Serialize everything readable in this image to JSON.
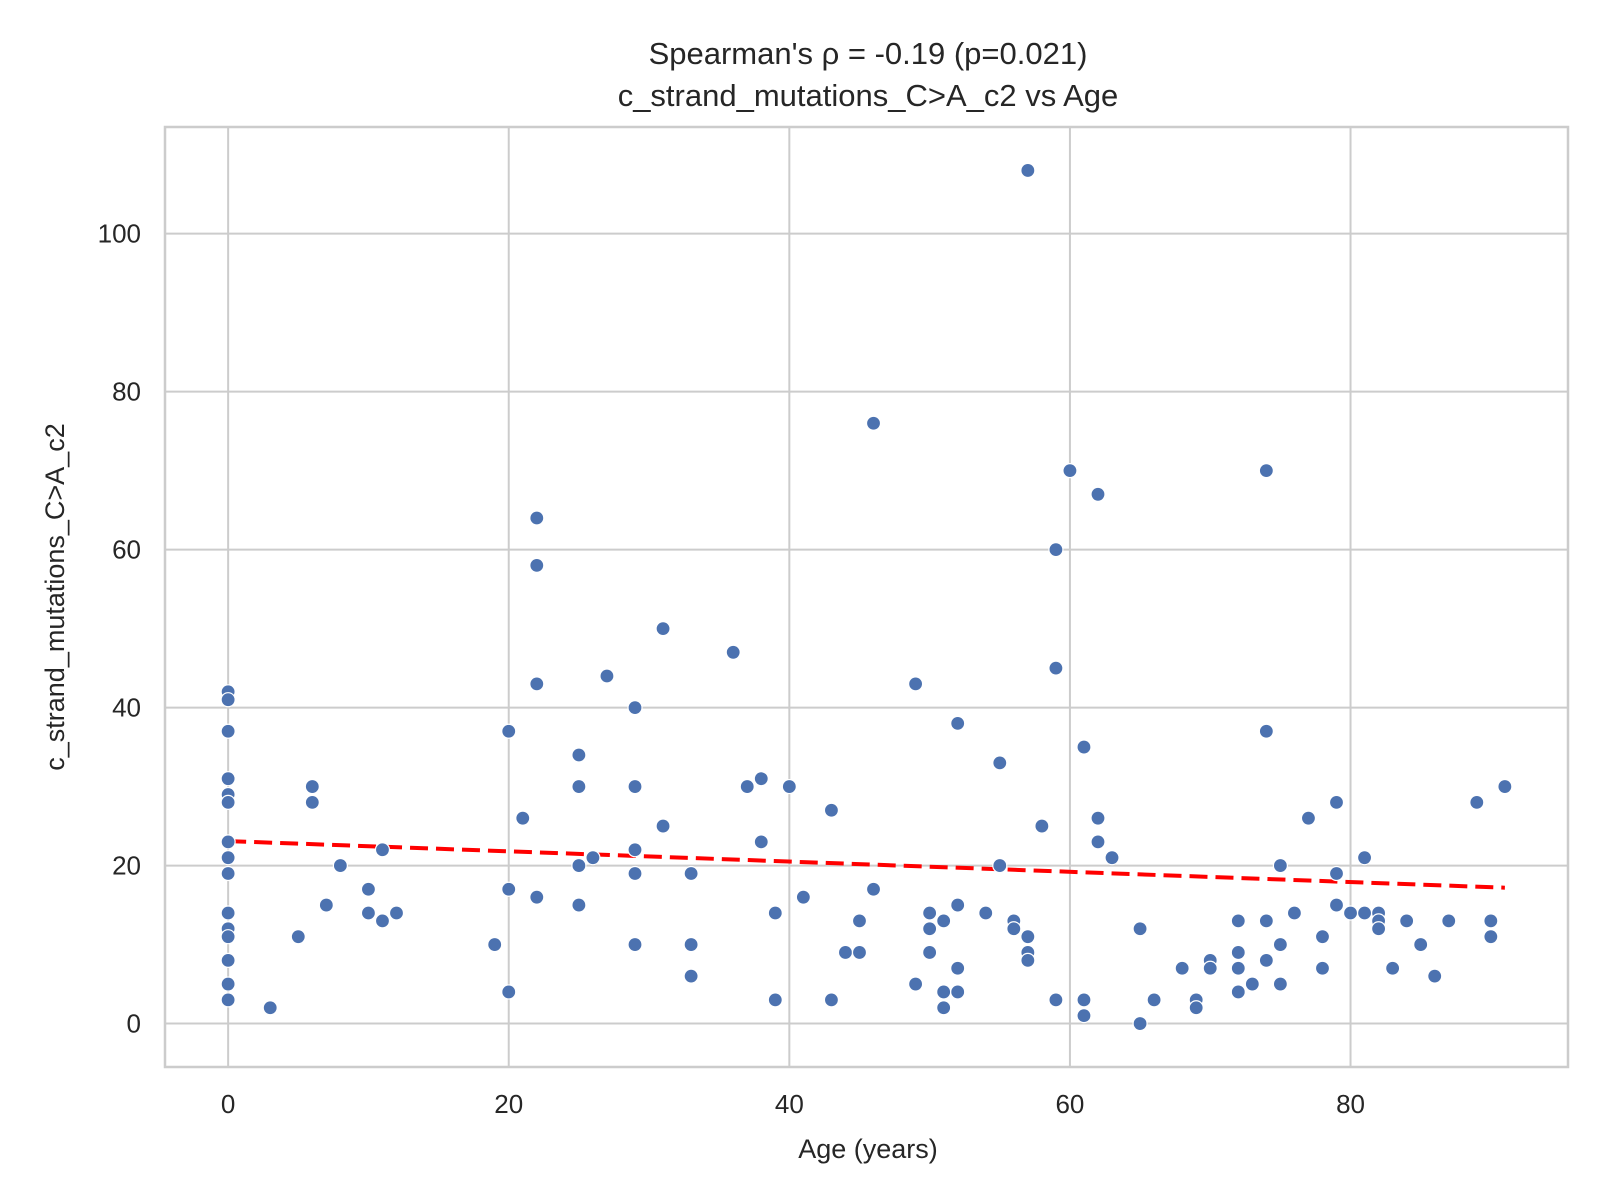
{
  "chart_data": {
    "type": "scatter",
    "title": [
      "Spearman's ρ = -0.19 (p=0.021)",
      "c_strand_mutations_C>A_c2 vs Age"
    ],
    "xlabel": "Age (years)",
    "ylabel": "c_strand_mutations_C>A_c2",
    "xlim": [
      -4.5,
      95.5
    ],
    "ylim": [
      -5.5,
      113.5
    ],
    "xticks": [
      0,
      20,
      40,
      60,
      80
    ],
    "yticks": [
      0,
      20,
      40,
      60,
      80,
      100
    ],
    "grid": true,
    "legend": "none",
    "colors": {
      "points": "#4c72b0",
      "trend": "#ff0000",
      "grid": "#cccccc"
    },
    "series": [
      {
        "points": [
          [
            0,
            42
          ],
          [
            0,
            41
          ],
          [
            0,
            37
          ],
          [
            0,
            31
          ],
          [
            0,
            29
          ],
          [
            0,
            28
          ],
          [
            0,
            23
          ],
          [
            0,
            21
          ],
          [
            0,
            19
          ],
          [
            0,
            14
          ],
          [
            0,
            12
          ],
          [
            0,
            11
          ],
          [
            0,
            8
          ],
          [
            0,
            5
          ],
          [
            0,
            3
          ],
          [
            3,
            2
          ],
          [
            5,
            11
          ],
          [
            6,
            30
          ],
          [
            6,
            28
          ],
          [
            7,
            15
          ],
          [
            8,
            20
          ],
          [
            10,
            17
          ],
          [
            10,
            14
          ],
          [
            11,
            22
          ],
          [
            11,
            13
          ],
          [
            12,
            14
          ],
          [
            19,
            10
          ],
          [
            20,
            37
          ],
          [
            20,
            17
          ],
          [
            20,
            4
          ],
          [
            21,
            26
          ],
          [
            22,
            64
          ],
          [
            22,
            58
          ],
          [
            22,
            43
          ],
          [
            22,
            16
          ],
          [
            25,
            34
          ],
          [
            25,
            30
          ],
          [
            25,
            20
          ],
          [
            25,
            15
          ],
          [
            26,
            21
          ],
          [
            27,
            44
          ],
          [
            29,
            40
          ],
          [
            29,
            30
          ],
          [
            29,
            22
          ],
          [
            29,
            19
          ],
          [
            29,
            10
          ],
          [
            31,
            50
          ],
          [
            31,
            25
          ],
          [
            33,
            19
          ],
          [
            33,
            10
          ],
          [
            33,
            6
          ],
          [
            36,
            47
          ],
          [
            37,
            30
          ],
          [
            38,
            31
          ],
          [
            38,
            23
          ],
          [
            39,
            14
          ],
          [
            39,
            3
          ],
          [
            40,
            30
          ],
          [
            41,
            16
          ],
          [
            43,
            27
          ],
          [
            43,
            3
          ],
          [
            44,
            9
          ],
          [
            45,
            13
          ],
          [
            45,
            9
          ],
          [
            46,
            76
          ],
          [
            46,
            17
          ],
          [
            49,
            43
          ],
          [
            49,
            5
          ],
          [
            50,
            14
          ],
          [
            50,
            12
          ],
          [
            50,
            9
          ],
          [
            51,
            13
          ],
          [
            51,
            4
          ],
          [
            51,
            2
          ],
          [
            52,
            38
          ],
          [
            52,
            15
          ],
          [
            52,
            7
          ],
          [
            52,
            4
          ],
          [
            54,
            14
          ],
          [
            55,
            33
          ],
          [
            55,
            20
          ],
          [
            56,
            13
          ],
          [
            56,
            12
          ],
          [
            57,
            108
          ],
          [
            57,
            11
          ],
          [
            57,
            9
          ],
          [
            57,
            8
          ],
          [
            58,
            25
          ],
          [
            59,
            60
          ],
          [
            59,
            45
          ],
          [
            59,
            3
          ],
          [
            60,
            70
          ],
          [
            61,
            35
          ],
          [
            61,
            3
          ],
          [
            61,
            1
          ],
          [
            62,
            67
          ],
          [
            62,
            26
          ],
          [
            62,
            23
          ],
          [
            63,
            21
          ],
          [
            65,
            12
          ],
          [
            65,
            0
          ],
          [
            66,
            3
          ],
          [
            68,
            7
          ],
          [
            69,
            3
          ],
          [
            69,
            2
          ],
          [
            70,
            8
          ],
          [
            70,
            7
          ],
          [
            72,
            13
          ],
          [
            72,
            9
          ],
          [
            72,
            7
          ],
          [
            72,
            4
          ],
          [
            73,
            5
          ],
          [
            74,
            70
          ],
          [
            74,
            37
          ],
          [
            74,
            13
          ],
          [
            74,
            8
          ],
          [
            75,
            20
          ],
          [
            75,
            10
          ],
          [
            75,
            5
          ],
          [
            76,
            14
          ],
          [
            77,
            26
          ],
          [
            78,
            11
          ],
          [
            78,
            7
          ],
          [
            79,
            28
          ],
          [
            79,
            19
          ],
          [
            79,
            15
          ],
          [
            80,
            14
          ],
          [
            81,
            21
          ],
          [
            81,
            14
          ],
          [
            82,
            14
          ],
          [
            82,
            13
          ],
          [
            82,
            12
          ],
          [
            83,
            7
          ],
          [
            84,
            13
          ],
          [
            85,
            10
          ],
          [
            86,
            6
          ],
          [
            87,
            13
          ],
          [
            89,
            28
          ],
          [
            90,
            13
          ],
          [
            90,
            11
          ],
          [
            91,
            30
          ]
        ]
      }
    ],
    "trendline": {
      "x": [
        0,
        91
      ],
      "y": [
        23.1,
        17.2
      ]
    }
  }
}
